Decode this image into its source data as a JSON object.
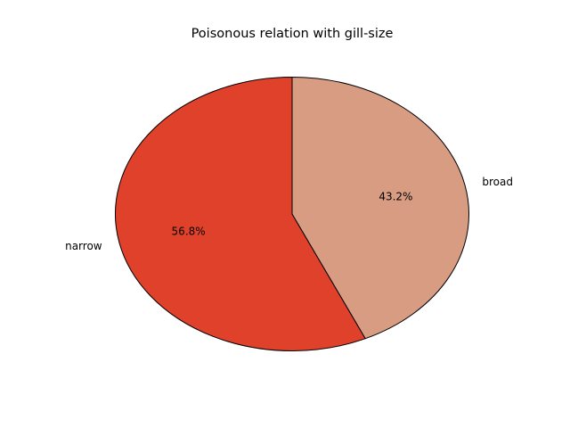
{
  "chart_data": {
    "type": "pie",
    "title": "Poisonous relation with gill-size",
    "slices": [
      {
        "label": "narrow",
        "value": 56.8,
        "pct_label": "56.8%",
        "color": "#e0412a"
      },
      {
        "label": "broad",
        "value": 43.2,
        "pct_label": "43.2%",
        "color": "#d89c83"
      }
    ],
    "start_angle_deg": 90,
    "direction": "counterclockwise",
    "edge_color": "#000000",
    "legend": "none"
  }
}
